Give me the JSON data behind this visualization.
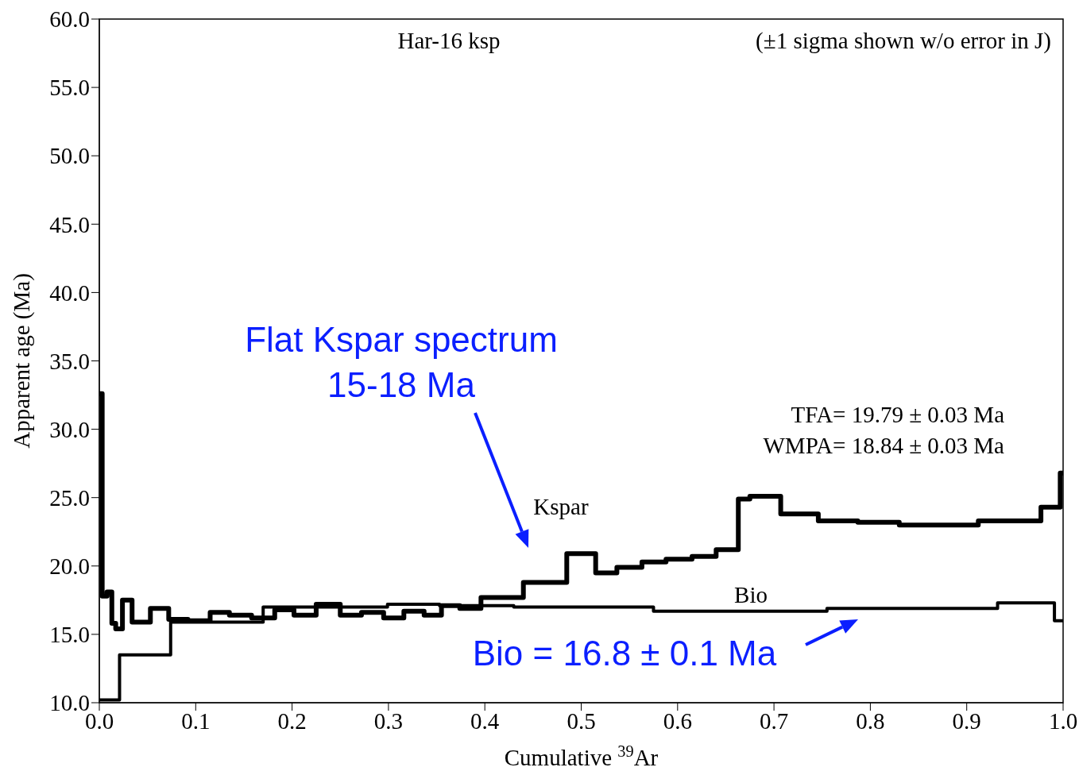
{
  "chart_data": {
    "type": "step",
    "xlabel": "Cumulative $^{39}$Ar",
    "ylabel": "Apparent age (Ma)",
    "xlim": [
      0,
      1
    ],
    "ylim": [
      10,
      60
    ],
    "xticks": [
      {
        "value": 0,
        "label": "0.0"
      },
      0.1,
      0.2,
      0.3,
      0.4,
      0.5,
      0.6,
      0.7,
      0.8,
      0.9,
      {
        "value": 1,
        "label": "1.0"
      }
    ],
    "yticks": [
      {
        "value": 10,
        "label": "10.0"
      },
      {
        "value": 15,
        "label": "15.0"
      },
      {
        "value": 20,
        "label": "20.0"
      },
      {
        "value": 25,
        "label": "25.0"
      },
      {
        "value": 30,
        "label": "30.0"
      },
      {
        "value": 35,
        "label": "35.0"
      },
      {
        "value": 40,
        "label": "40.0"
      },
      {
        "value": 45,
        "label": "45.0"
      },
      {
        "value": 50,
        "label": "50.0"
      },
      {
        "value": 55,
        "label": "55.0"
      },
      {
        "value": 60,
        "label": "60.0"
      }
    ],
    "grid": false,
    "legend": false,
    "marker": "none",
    "line_style": "solid",
    "series": [
      {
        "name": "Kspar",
        "color": "#000000",
        "x": [
          0,
          0.003,
          0.008,
          0.013,
          0.017,
          0.024,
          0.034,
          0.053,
          0.072,
          0.092,
          0.115,
          0.135,
          0.158,
          0.182,
          0.202,
          0.225,
          0.25,
          0.272,
          0.295,
          0.316,
          0.337,
          0.355,
          0.374,
          0.396,
          0.44,
          0.485,
          0.515,
          0.537,
          0.563,
          0.588,
          0.615,
          0.64,
          0.663,
          0.675,
          0.707,
          0.746,
          0.787,
          0.83,
          0.912,
          0.977,
          0.997,
          1.0
        ],
        "values": [
          32.6,
          17.8,
          18.1,
          15.8,
          15.4,
          17.5,
          15.9,
          16.9,
          16.1,
          16.0,
          16.6,
          16.4,
          16.2,
          16.8,
          16.4,
          17.2,
          16.4,
          16.6,
          16.2,
          16.7,
          16.4,
          17.1,
          16.9,
          17.7,
          18.8,
          20.9,
          19.5,
          19.9,
          20.3,
          20.5,
          20.7,
          21.2,
          24.9,
          25.1,
          23.8,
          23.3,
          23.2,
          23.0,
          23.3,
          24.3,
          26.8,
          26.8
        ]
      },
      {
        "name": "Bio",
        "color": "#000000",
        "x": [
          0,
          0.021,
          0.074,
          0.17,
          0.299,
          0.353,
          0.43,
          0.575,
          0.755,
          0.932,
          0.991,
          1.0
        ],
        "values": [
          10.2,
          13.5,
          15.9,
          17.0,
          17.2,
          17.1,
          17.0,
          16.7,
          16.9,
          17.3,
          16.0,
          16.0
        ]
      }
    ],
    "annotations": [
      "Har-16 ksp",
      "(±1 sigma shown w/o error in J)",
      "TFA= 19.79 ± 0.03 Ma",
      "WMPA= 18.84 ± 0.03 Ma",
      "Flat Kspar spectrum\n15-18 Ma",
      "Bio = 16.8 ± 0.1 Ma"
    ]
  }
}
